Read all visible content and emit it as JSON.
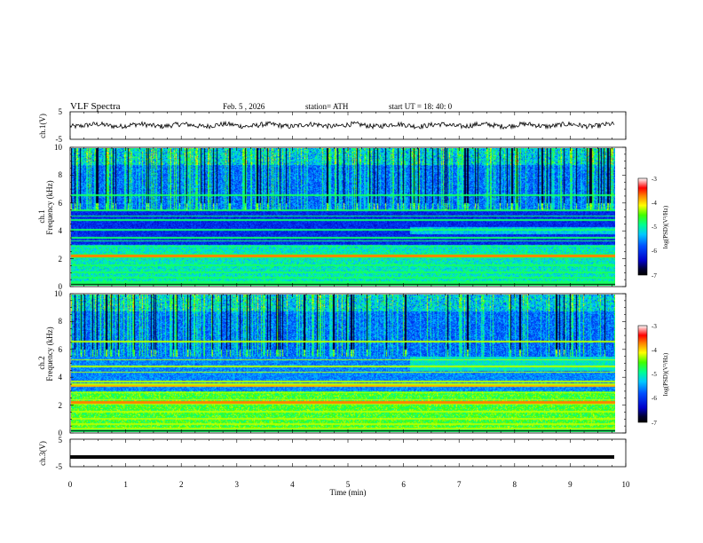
{
  "header": {
    "title": "VLF  Spectra",
    "date": "Feb. 5  , 2026",
    "station": "station= ATH",
    "start_ut": "start  UT  =   18: 40: 0"
  },
  "chart_data": [
    {
      "type": "line",
      "name": "ch1-waveform",
      "ylabel": "ch.1(V)",
      "ylim": [
        -5,
        5
      ],
      "yticks": [
        "5",
        "-5"
      ],
      "x_range_min": [
        0,
        9.8
      ],
      "trace_level": 0.1
    },
    {
      "type": "heatmap",
      "name": "ch1-spectrogram",
      "ylabel_top": "ch.1",
      "ylabel": "Frequency  (kHz)",
      "ylim": [
        0,
        10
      ],
      "yticks": [
        "0",
        "2",
        "4",
        "6",
        "8",
        "10"
      ],
      "colorbar": {
        "label": "log(PSD)(V²/Hz)",
        "ticks": [
          "-3",
          "-4",
          "-5",
          "-6",
          "-7"
        ],
        "range": [
          -7,
          -3
        ]
      }
    },
    {
      "type": "heatmap",
      "name": "ch2-spectrogram",
      "ylabel_top": "ch.2",
      "ylabel": "Frequency  (kHz)",
      "ylim": [
        0,
        10
      ],
      "yticks": [
        "0",
        "2",
        "4",
        "6",
        "8",
        "10"
      ],
      "colorbar": {
        "label": "log(PSD)(V²/Hz)",
        "ticks": [
          "-3",
          "-4",
          "-5",
          "-6",
          "-7"
        ],
        "range": [
          -7,
          -3
        ]
      }
    },
    {
      "type": "line",
      "name": "ch3-waveform",
      "ylabel": "ch.3(V)",
      "ylim": [
        -5,
        5
      ],
      "yticks": [
        "5",
        "-5"
      ],
      "trace_level": -1.5
    }
  ],
  "x_axis": {
    "label": "Time  (min)",
    "ticks": [
      "0",
      "1",
      "2",
      "3",
      "4",
      "5",
      "6",
      "7",
      "8",
      "9",
      "10"
    ],
    "range": [
      0,
      10
    ]
  },
  "colors": {
    "frame": "#000000",
    "trace": "#000000",
    "background": "#ffffff"
  }
}
